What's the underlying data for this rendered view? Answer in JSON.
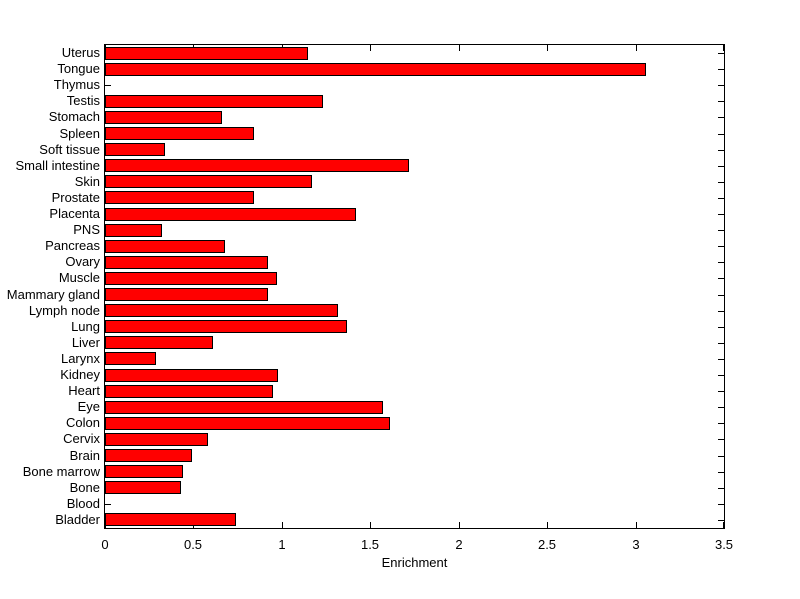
{
  "chart_data": {
    "type": "bar",
    "orientation": "horizontal",
    "title": "",
    "xlabel": "Enrichment",
    "ylabel": "",
    "xlim": [
      0,
      3.5
    ],
    "xticks": [
      "0",
      "0.5",
      "1",
      "1.5",
      "2",
      "2.5",
      "3",
      "3.5"
    ],
    "grid": false,
    "legend": null,
    "bar_color": "#ff0000",
    "bar_edge_color": "#000000",
    "axis_color": "#000000",
    "background_color": "#ffffff",
    "categories": [
      "Uterus",
      "Tongue",
      "Thymus",
      "Testis",
      "Stomach",
      "Spleen",
      "Soft tissue",
      "Small intestine",
      "Skin",
      "Prostate",
      "Placenta",
      "PNS",
      "Pancreas",
      "Ovary",
      "Muscle",
      "Mammary gland",
      "Lymph node",
      "Lung",
      "Liver",
      "Larynx",
      "Kidney",
      "Heart",
      "Eye",
      "Colon",
      "Cervix",
      "Brain",
      "Bone marrow",
      "Bone",
      "Blood",
      "Bladder"
    ],
    "values": [
      1.15,
      3.06,
      0,
      1.23,
      0.66,
      0.84,
      0.34,
      1.72,
      1.17,
      0.84,
      1.42,
      0.32,
      0.68,
      0.92,
      0.97,
      0.92,
      1.32,
      1.37,
      0.61,
      0.29,
      0.98,
      0.95,
      1.57,
      1.61,
      0.58,
      0.49,
      0.44,
      0.43,
      0,
      0.74
    ]
  }
}
